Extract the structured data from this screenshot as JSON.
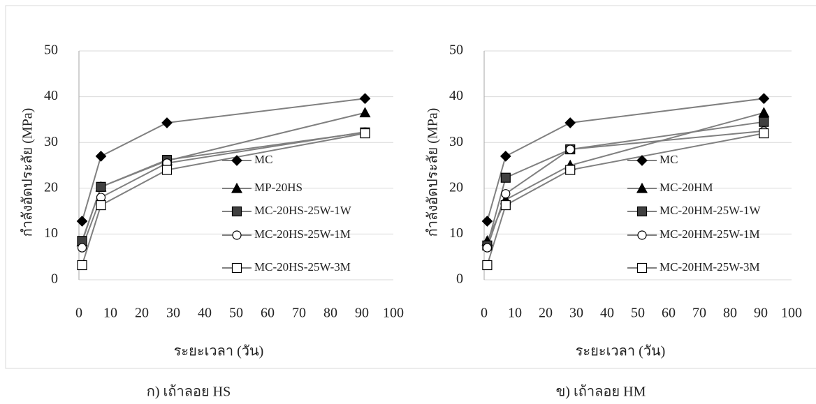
{
  "chart_data": [
    {
      "type": "line",
      "caption": "ก) เถ้าลอย HS",
      "xlabel": "ระยะเวลา (วัน)",
      "ylabel": "กำลังอัดประลัย (MPa)",
      "x": [
        1,
        7,
        28,
        91
      ],
      "xlim": [
        0,
        100
      ],
      "xticks": [
        0,
        10,
        20,
        30,
        40,
        50,
        60,
        70,
        80,
        90,
        100
      ],
      "ylim": [
        0,
        50
      ],
      "yticks": [
        0,
        10,
        20,
        30,
        40,
        50
      ],
      "grid": true,
      "series": [
        {
          "name": "MC",
          "color": "#808080",
          "marker": "diamond",
          "marker_fill": "#000000",
          "values": [
            12.8,
            27,
            34.3,
            39.6
          ]
        },
        {
          "name": "MP-20HS",
          "color": "#808080",
          "marker": "triangle",
          "marker_fill": "#000000",
          "values": [
            8.3,
            20.3,
            26,
            36.5
          ]
        },
        {
          "name": "MC-20HS-25W-1W",
          "color": "#808080",
          "marker": "square",
          "marker_fill": "#404040",
          "values": [
            8.5,
            20.3,
            26.2,
            32.2
          ]
        },
        {
          "name": "MC-20HS-25W-1M",
          "color": "#808080",
          "marker": "circle",
          "marker_fill": "#ffffff",
          "values": [
            7,
            18,
            25.5,
            32.3
          ]
        },
        {
          "name": "MC-20HS-25W-3M",
          "color": "#808080",
          "marker": "square",
          "marker_fill": "#ffffff",
          "values": [
            3.2,
            16.3,
            24,
            32
          ]
        }
      ]
    },
    {
      "type": "line",
      "caption": "ข) เถ้าลอย HM",
      "xlabel": "ระยะเวลา (วัน)",
      "ylabel": "กำลังอัดประลัย (MPa)",
      "x": [
        1,
        7,
        28,
        91
      ],
      "xlim": [
        0,
        100
      ],
      "xticks": [
        0,
        10,
        20,
        30,
        40,
        50,
        60,
        70,
        80,
        90,
        100
      ],
      "ylim": [
        0,
        50
      ],
      "yticks": [
        0,
        10,
        20,
        30,
        40,
        50
      ],
      "grid": true,
      "series": [
        {
          "name": "MC",
          "color": "#808080",
          "marker": "diamond",
          "marker_fill": "#000000",
          "values": [
            12.8,
            27,
            34.3,
            39.6
          ]
        },
        {
          "name": "MC-20HM",
          "color": "#808080",
          "marker": "triangle",
          "marker_fill": "#000000",
          "values": [
            8.5,
            17.5,
            25,
            36.5
          ]
        },
        {
          "name": "MC-20HM-25W-1W",
          "color": "#808080",
          "marker": "square",
          "marker_fill": "#404040",
          "values": [
            7.5,
            22.3,
            28.5,
            34.5
          ]
        },
        {
          "name": "MC-20HM-25W-1M",
          "color": "#808080",
          "marker": "circle",
          "marker_fill": "#ffffff",
          "values": [
            7,
            18.8,
            28.5,
            32.5
          ]
        },
        {
          "name": "MC-20HM-25W-3M",
          "color": "#808080",
          "marker": "square",
          "marker_fill": "#ffffff",
          "values": [
            3.2,
            16.3,
            24,
            32
          ]
        }
      ]
    }
  ]
}
